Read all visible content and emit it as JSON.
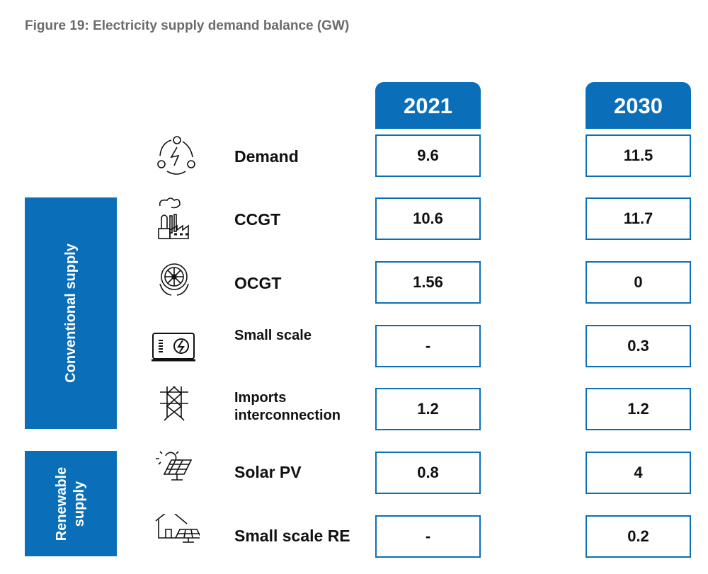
{
  "title": "Figure 19: Electricity supply demand balance (GW)",
  "years": [
    "2021",
    "2030"
  ],
  "groups": {
    "conventional": "Conventional supply",
    "renewable_line1": "Renewable",
    "renewable_line2": "supply"
  },
  "colors": {
    "accent": "#0a6fb8"
  },
  "rows": [
    {
      "label": "Demand",
      "icon": "power-cycle-icon",
      "v2021": "9.6",
      "v2030": "11.5"
    },
    {
      "label": "CCGT",
      "icon": "factory-icon",
      "v2021": "10.6",
      "v2030": "11.7"
    },
    {
      "label": "OCGT",
      "icon": "turbine-icon",
      "v2021": "1.56",
      "v2030": "0"
    },
    {
      "label": "Small scale",
      "icon": "generator-icon",
      "v2021": "-",
      "v2030": "0.3"
    },
    {
      "label": "Imports",
      "label2": "interconnection",
      "icon": "transmission-tower-icon",
      "v2021": "1.2",
      "v2030": "1.2"
    },
    {
      "label": "Solar PV",
      "icon": "solar-panel-icon",
      "v2021": "0.8",
      "v2030": "4"
    },
    {
      "label": "Small scale RE",
      "icon": "house-solar-icon",
      "v2021": "-",
      "v2030": "0.2"
    }
  ]
}
